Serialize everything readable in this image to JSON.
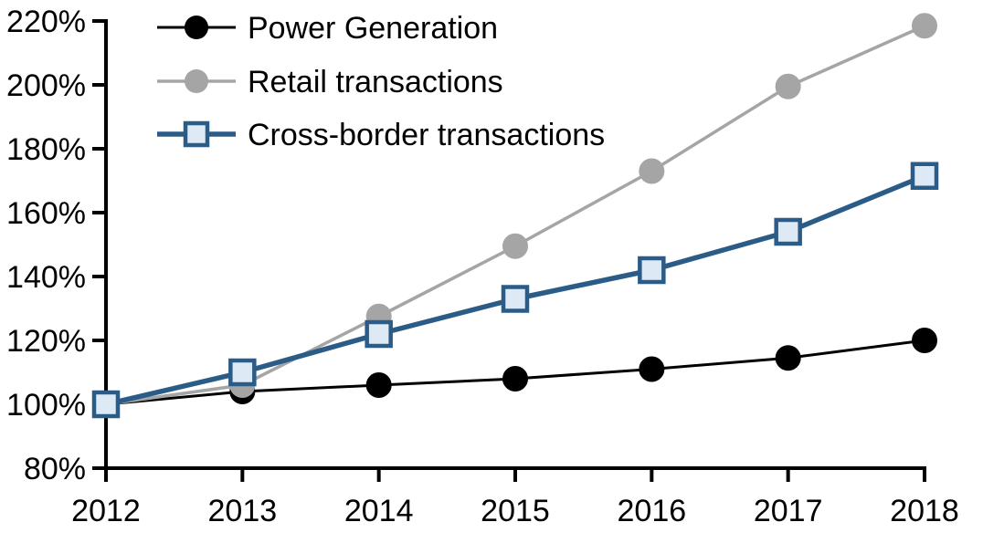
{
  "chart_data": {
    "type": "line",
    "title": "",
    "xlabel": "",
    "ylabel": "",
    "x": [
      2012,
      2013,
      2014,
      2015,
      2016,
      2017,
      2018
    ],
    "xtick_labels": [
      "2012",
      "2013",
      "2014",
      "2015",
      "2016",
      "2017",
      "2018"
    ],
    "ylim": [
      80,
      220
    ],
    "ytick_step": 20,
    "ytick_labels": [
      "80%",
      "100%",
      "120%",
      "140%",
      "160%",
      "180%",
      "200%",
      "220%"
    ],
    "grid": false,
    "legend_position": "top-left-inside",
    "axis_color": "#000000",
    "background_color": "#ffffff",
    "series": [
      {
        "name": "Power Generation",
        "values": [
          100,
          104,
          106,
          108,
          111,
          114.5,
          120
        ],
        "color": "#000000",
        "marker": "circle",
        "marker_fill": "#000000",
        "line_width": 3
      },
      {
        "name": "Retail transactions",
        "values": [
          100,
          106,
          127.5,
          149.5,
          173,
          199.5,
          218.5
        ],
        "color": "#A5A5A5",
        "marker": "circle",
        "marker_fill": "#A5A5A5",
        "line_width": 3.5
      },
      {
        "name": "Cross-border transactions",
        "values": [
          100,
          110,
          122,
          133,
          142,
          154,
          171.5
        ],
        "color": "#2B5C87",
        "marker": "square",
        "marker_fill": "#DDEAF6",
        "line_width": 5.5
      }
    ]
  }
}
